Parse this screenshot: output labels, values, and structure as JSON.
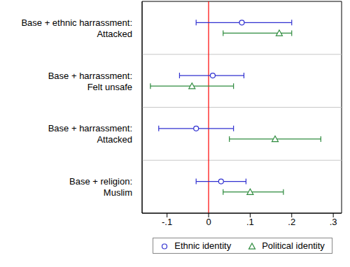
{
  "chart_data": {
    "type": "scatter",
    "orientation": "horizontal",
    "categories": [
      "Base + ethnic harrassment: Attacked",
      "Base + harrassment: Felt unsafe",
      "Base + harrassment: Attacked",
      "Base + religion: Muslim"
    ],
    "series": [
      {
        "name": "Ethnic identity",
        "color": "#3030d0",
        "marker": "circle",
        "values": [
          0.08,
          0.01,
          -0.03,
          0.03
        ],
        "ci_low": [
          -0.03,
          -0.07,
          -0.12,
          -0.03
        ],
        "ci_high": [
          0.2,
          0.085,
          0.06,
          0.09
        ]
      },
      {
        "name": "Political identity",
        "color": "#2e8b3e",
        "marker": "triangle",
        "values": [
          0.17,
          -0.04,
          0.16,
          0.1
        ],
        "ci_low": [
          0.035,
          -0.14,
          0.05,
          0.035
        ],
        "ci_high": [
          0.2,
          0.06,
          0.27,
          0.18
        ]
      }
    ],
    "xlim": [
      -0.16,
      0.32
    ],
    "xticks": [
      {
        "value": -0.1,
        "label": "-.1"
      },
      {
        "value": 0,
        "label": "0"
      },
      {
        "value": 0.1,
        "label": ".1"
      },
      {
        "value": 0.2,
        "label": ".2"
      },
      {
        "value": 0.3,
        "label": ".3"
      }
    ],
    "reference_line": {
      "x": 0,
      "color": "#ff0000"
    },
    "legend": "bottom"
  }
}
